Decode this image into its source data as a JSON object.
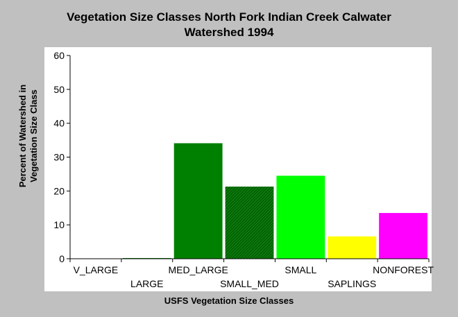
{
  "chart_data": {
    "type": "bar",
    "title_lines": [
      "Vegetation Size Classes North Fork Indian Creek Calwater",
      "Watershed 1994"
    ],
    "xlabel": "USFS Vegetation Size Classes",
    "ylabel_lines": [
      "Percent of Watershed in",
      "Vegetation Size Class"
    ],
    "categories": [
      "V_LARGE",
      "LARGE",
      "MED_LARGE",
      "SMALL_MED",
      "SMALL",
      "SAPLINGS",
      "NONFOREST"
    ],
    "values": [
      0,
      0.2,
      34.1,
      21.3,
      24.5,
      6.6,
      13.5
    ],
    "ylim": [
      0,
      60
    ],
    "yticks": [
      "0",
      "10",
      "20",
      "30",
      "40",
      "50",
      "60"
    ],
    "colors": [
      "#008000",
      "#008000",
      "#008000",
      "#007a00",
      "#00ff00",
      "#ffff00",
      "#ff00ff"
    ],
    "hatched_category": "SMALL_MED",
    "grid": false,
    "legend": "none"
  }
}
